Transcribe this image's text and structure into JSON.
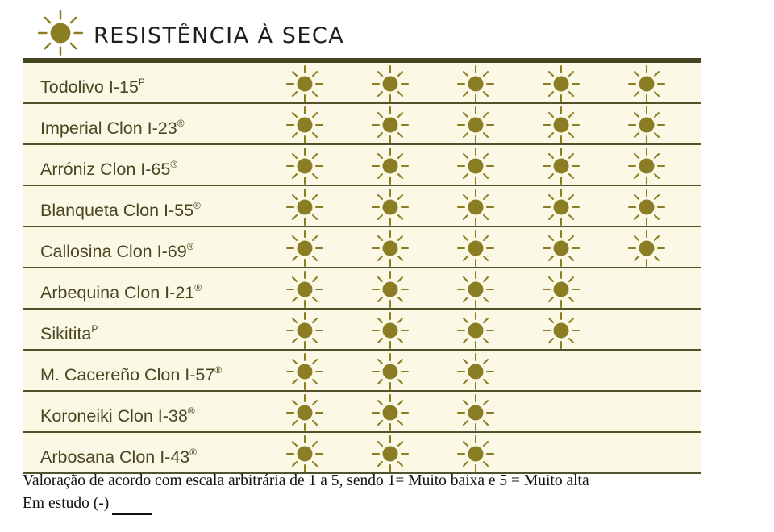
{
  "title": "RESISTÊNCIA À SECA",
  "rows": [
    {
      "name": "Todolivo I-15",
      "mark": "P",
      "rating": 5
    },
    {
      "name": "Imperial Clon I-23",
      "mark": "®",
      "rating": 5
    },
    {
      "name": "Arróniz Clon I-65",
      "mark": "®",
      "rating": 5
    },
    {
      "name": "Blanqueta Clon I-55",
      "mark": "®",
      "rating": 5
    },
    {
      "name": "Callosina Clon I-69",
      "mark": "®",
      "rating": 5
    },
    {
      "name": "Arbequina Clon I-21",
      "mark": "®",
      "rating": 4
    },
    {
      "name": "Sikitita",
      "mark": "P",
      "rating": 4
    },
    {
      "name": "M. Cacereño Clon I-57",
      "mark": "®",
      "rating": 3
    },
    {
      "name": "Koroneiki Clon I-38",
      "mark": "®",
      "rating": 3
    },
    {
      "name": "Arbosana Clon I-43",
      "mark": "®",
      "rating": 3
    }
  ],
  "note": {
    "line1": "Valoração de acordo com escala arbitrária de 1 a 5, sendo 1= Muito baixa e 5 = Muito alta",
    "line2": "Em estudo (-)"
  },
  "colors": {
    "sun": "#8b7d24",
    "rays": "#8b7d24",
    "row_bg": "#fbf8e6",
    "rule": "#454721"
  },
  "icons": {
    "header": "sun-icon",
    "rating": "sun-rating-icon"
  }
}
